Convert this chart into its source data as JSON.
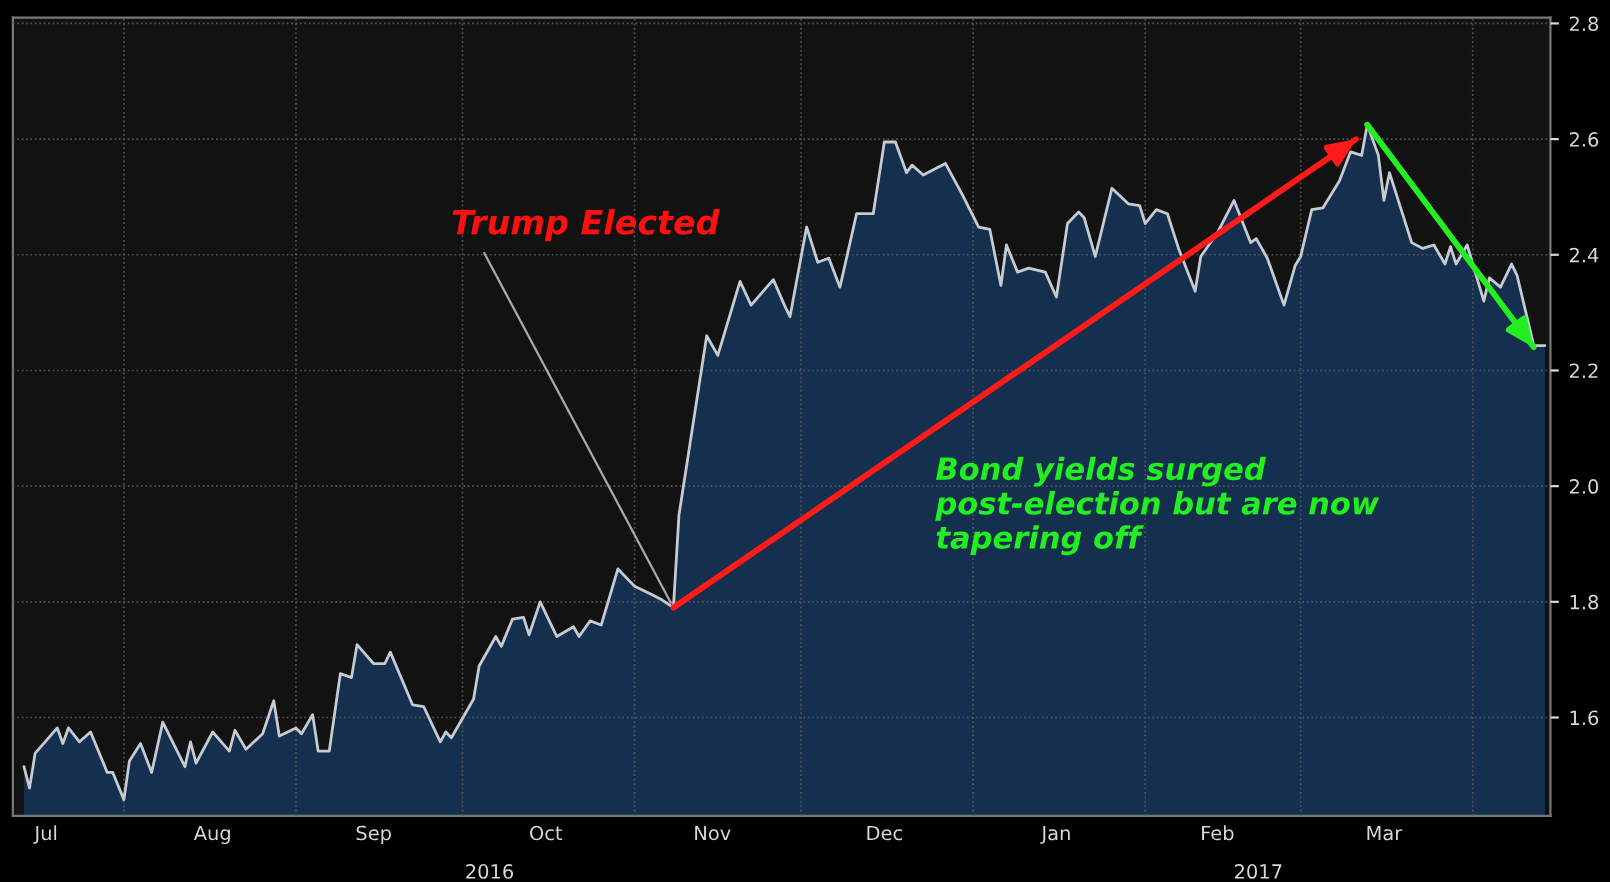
{
  "chart_data": {
    "type": "area",
    "x": [
      "2016-07-14",
      "2016-07-15",
      "2016-07-16",
      "2016-07-20",
      "2016-07-21",
      "2016-07-22",
      "2016-07-24",
      "2016-07-26",
      "2016-07-29",
      "2016-07-30",
      "2016-08-01",
      "2016-08-02",
      "2016-08-04",
      "2016-08-06",
      "2016-08-08",
      "2016-08-12",
      "2016-08-13",
      "2016-08-14",
      "2016-08-17",
      "2016-08-20",
      "2016-08-21",
      "2016-08-23",
      "2016-08-26",
      "2016-08-28",
      "2016-08-29",
      "2016-09-01",
      "2016-09-02",
      "2016-09-04",
      "2016-09-05",
      "2016-09-07",
      "2016-09-09",
      "2016-09-11",
      "2016-09-12",
      "2016-09-15",
      "2016-09-17",
      "2016-09-18",
      "2016-09-22",
      "2016-09-24",
      "2016-09-27",
      "2016-09-28",
      "2016-09-29",
      "2016-10-03",
      "2016-10-04",
      "2016-10-07",
      "2016-10-08",
      "2016-10-10",
      "2016-10-12",
      "2016-10-13",
      "2016-10-15",
      "2016-10-18",
      "2016-10-21",
      "2016-10-22",
      "2016-10-24",
      "2016-10-26",
      "2016-10-29",
      "2016-11-01",
      "2016-11-04",
      "2016-11-06",
      "2016-11-08",
      "2016-11-09",
      "2016-11-14",
      "2016-11-16",
      "2016-11-20",
      "2016-11-22",
      "2016-11-26",
      "2016-11-28",
      "2016-11-29",
      "2016-12-02",
      "2016-12-04",
      "2016-12-06",
      "2016-12-08",
      "2016-12-11",
      "2016-12-14",
      "2016-12-16",
      "2016-12-18",
      "2016-12-20",
      "2016-12-21",
      "2016-12-23",
      "2016-12-25",
      "2016-12-27",
      "2016-12-30",
      "2017-01-02",
      "2017-01-04",
      "2017-01-06",
      "2017-01-07",
      "2017-01-09",
      "2017-01-11",
      "2017-01-14",
      "2017-01-16",
      "2017-01-18",
      "2017-01-20",
      "2017-01-21",
      "2017-01-23",
      "2017-01-26",
      "2017-01-29",
      "2017-01-31",
      "2017-02-01",
      "2017-02-03",
      "2017-02-05",
      "2017-02-07",
      "2017-02-10",
      "2017-02-11",
      "2017-02-14",
      "2017-02-17",
      "2017-02-20",
      "2017-02-21",
      "2017-02-23",
      "2017-02-26",
      "2017-02-28",
      "2017-03-01",
      "2017-03-03",
      "2017-03-05",
      "2017-03-08",
      "2017-03-10",
      "2017-03-12",
      "2017-03-13",
      "2017-03-15",
      "2017-03-16",
      "2017-03-17",
      "2017-03-21",
      "2017-03-23",
      "2017-03-25",
      "2017-03-27",
      "2017-03-28",
      "2017-03-29",
      "2017-03-31",
      "2017-04-03",
      "2017-04-04",
      "2017-04-06",
      "2017-04-08",
      "2017-04-09",
      "2017-04-12",
      "2017-04-14"
    ],
    "series": [
      {
        "color": "#15304e",
        "values": [
          1.515,
          1.478,
          1.538,
          1.582,
          1.555,
          1.582,
          1.558,
          1.575,
          1.505,
          1.505,
          1.458,
          1.525,
          1.555,
          1.505,
          1.592,
          1.515,
          1.558,
          1.521,
          1.575,
          1.542,
          1.578,
          1.545,
          1.572,
          1.629,
          1.568,
          1.582,
          1.572,
          1.605,
          1.542,
          1.542,
          1.676,
          1.669,
          1.726,
          1.693,
          1.693,
          1.713,
          1.622,
          1.619,
          1.558,
          1.575,
          1.565,
          1.632,
          1.689,
          1.74,
          1.723,
          1.77,
          1.773,
          1.743,
          1.8,
          1.74,
          1.757,
          1.74,
          1.767,
          1.76,
          1.857,
          1.827,
          1.813,
          1.803,
          1.79,
          1.95,
          2.26,
          2.226,
          2.354,
          2.313,
          2.357,
          2.313,
          2.293,
          2.448,
          2.387,
          2.394,
          2.344,
          2.471,
          2.471,
          2.595,
          2.595,
          2.542,
          2.555,
          2.538,
          2.548,
          2.558,
          2.505,
          2.448,
          2.444,
          2.347,
          2.417,
          2.37,
          2.377,
          2.37,
          2.327,
          2.454,
          2.474,
          2.464,
          2.397,
          2.515,
          2.488,
          2.485,
          2.454,
          2.478,
          2.471,
          2.411,
          2.337,
          2.397,
          2.438,
          2.494,
          2.421,
          2.428,
          2.394,
          2.313,
          2.381,
          2.397,
          2.478,
          2.481,
          2.528,
          2.578,
          2.572,
          2.625,
          2.572,
          2.494,
          2.542,
          2.421,
          2.411,
          2.417,
          2.384,
          2.414,
          2.384,
          2.417,
          2.32,
          2.36,
          2.344,
          2.384,
          2.364,
          2.243,
          2.243
        ]
      },
      {
        "type": "line",
        "color": "#ff1a1a",
        "x": [
          "2016-11-08",
          "2017-03-11"
        ],
        "values": [
          1.79,
          2.6
        ]
      },
      {
        "type": "line",
        "color": "#22ee22",
        "x": [
          "2017-03-13",
          "2017-04-12"
        ],
        "values": [
          2.625,
          2.24
        ]
      }
    ],
    "xlim": [
      "2016-07-12",
      "2017-04-15"
    ],
    "xticks": [
      {
        "value": "2016-07-18",
        "label": "Jul"
      },
      {
        "value": "2016-08-01",
        "label": null
      },
      {
        "value": "2016-08-17",
        "label": "Aug"
      },
      {
        "value": "2016-09-01",
        "label": null
      },
      {
        "value": "2016-09-15",
        "label": "Sep"
      },
      {
        "value": "2016-10-01",
        "label": null
      },
      {
        "value": "2016-10-16",
        "label": "Oct"
      },
      {
        "value": "2016-11-01",
        "label": null
      },
      {
        "value": "2016-11-15",
        "label": "Nov"
      },
      {
        "value": "2016-12-01",
        "label": null
      },
      {
        "value": "2016-12-16",
        "label": "Dec"
      },
      {
        "value": "2017-01-01",
        "label": null
      },
      {
        "value": "2017-01-16",
        "label": "Jan"
      },
      {
        "value": "2017-02-01",
        "label": null
      },
      {
        "value": "2017-02-14",
        "label": "Feb"
      },
      {
        "value": "2017-03-01",
        "label": null
      },
      {
        "value": "2017-03-16",
        "label": "Mar"
      },
      {
        "value": "2017-04-01",
        "label": null
      }
    ],
    "ylim": [
      1.43,
      2.81
    ],
    "yticks": [
      1.6,
      1.8,
      {
        "value": 2.0,
        "label": "2.0"
      },
      2.2,
      2.4,
      2.6,
      2.8
    ],
    "grid": true,
    "annotations": [
      {
        "text": "Trump Elected",
        "x": "2016-11-08",
        "y": 1.79
      },
      "Bond yields surged\npost-election but are now\ntapering off",
      "2016",
      "2017"
    ]
  }
}
